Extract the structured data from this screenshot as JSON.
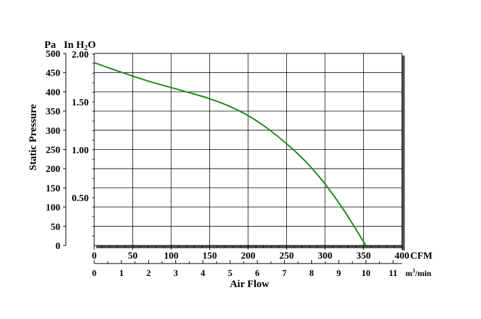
{
  "chart_data": {
    "type": "line",
    "title": "",
    "xlabel": "Air Flow",
    "ylabel": "Static Pressure",
    "left_unit_pa": "Pa",
    "left_unit_inh2o_prefix": "In H",
    "left_unit_inh2o_sub": "2",
    "left_unit_inh2o_suffix": "O",
    "x_primary_unit": "CFM",
    "x_secondary_unit_prefix": "m",
    "x_secondary_unit_sup": "3",
    "x_secondary_unit_suffix": "/min",
    "xlim": [
      0,
      400
    ],
    "ylim": [
      0,
      500
    ],
    "x_ticks": [
      "0",
      "50",
      "100",
      "150",
      "200",
      "250",
      "300",
      "350",
      "400"
    ],
    "x2_ticks": [
      "0",
      "1",
      "2",
      "3",
      "4",
      "5",
      "6",
      "7",
      "8",
      "9",
      "10",
      "11"
    ],
    "y_pa_ticks": [
      "0",
      "50",
      "100",
      "150",
      "200",
      "250",
      "300",
      "350",
      "400",
      "450",
      "500"
    ],
    "y_inh2o_ticks": [
      "0.50",
      "1.00",
      "1.50",
      "2.00"
    ],
    "grid": true,
    "line_color": "#1a8a1a",
    "series": [
      {
        "name": "",
        "x": [
          0,
          25,
          50,
          75,
          100,
          125,
          150,
          175,
          200,
          225,
          250,
          275,
          300,
          325,
          353
        ],
        "y": [
          476,
          458,
          441,
          425,
          411,
          397,
          382,
          363,
          338,
          305,
          265,
          218,
          160,
          90,
          0
        ]
      }
    ]
  }
}
